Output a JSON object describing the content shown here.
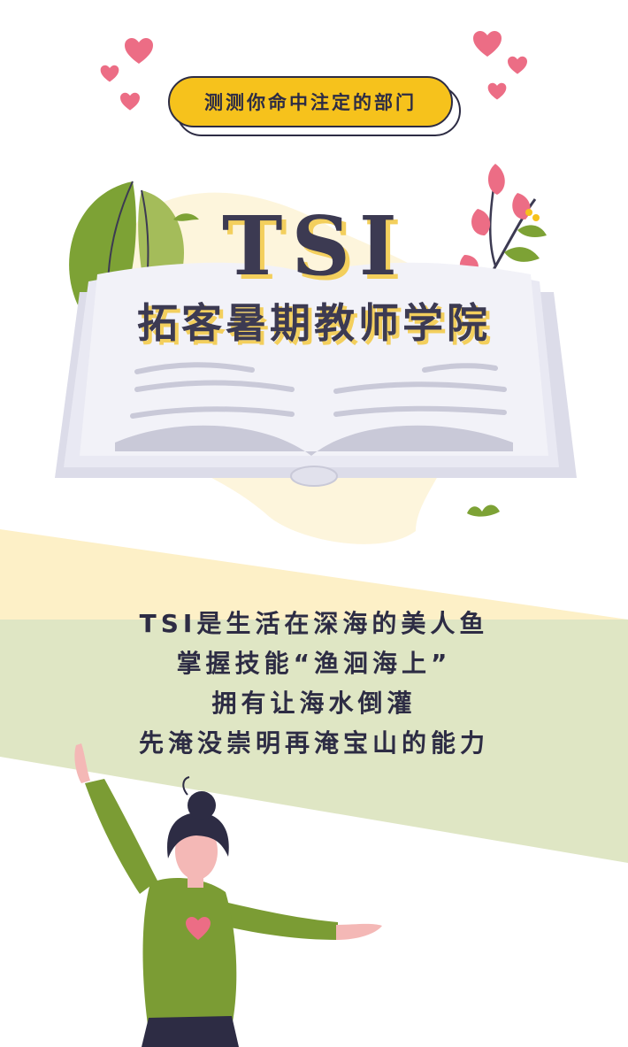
{
  "badge": {
    "text": "测测你命中注定的部门"
  },
  "title": {
    "main": "TSI",
    "sub": "拓客暑期教师学院"
  },
  "poem": {
    "lines": [
      "TSI是生活在深海的美人鱼",
      "掌握技能“渔洄海上”",
      "拥有让海水倒灌",
      "先淹没崇明再淹宝山的能力"
    ]
  },
  "colors": {
    "badge_fill": "#f6c21c",
    "ink": "#2d2c44",
    "title_shadow": "#f3cf5d",
    "heart_pink": "#ec6d85",
    "leaf_green": "#7da235",
    "band_yellow": "#fdf0c7",
    "band_green": "#dfe6c4",
    "shirt_green": "#7b9c34"
  },
  "icons": [
    "heart-icon",
    "book-illustration",
    "leaf-illustration",
    "flower-illustration",
    "woman-illustration"
  ]
}
